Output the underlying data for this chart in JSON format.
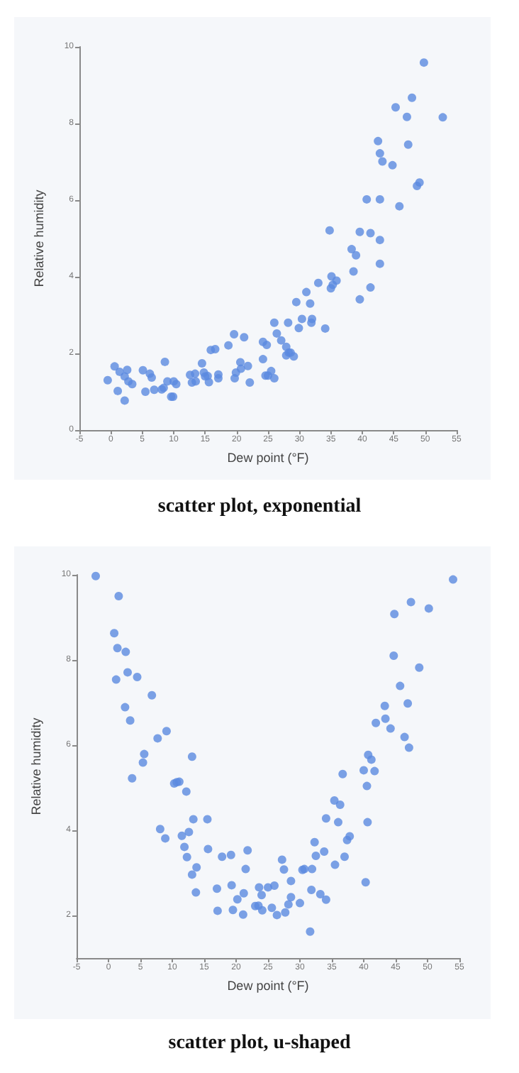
{
  "chart_data": [
    {
      "type": "scatter",
      "title": "scatter plot, exponential",
      "xlabel": "Dew point (°F)",
      "ylabel": "Relative humidity",
      "color": "#5b8ae0",
      "marker": "circle",
      "grid": false,
      "xlim": [
        -5,
        55
      ],
      "xticks": [
        -5,
        0,
        5,
        10,
        15,
        20,
        25,
        30,
        35,
        40,
        45,
        50,
        55
      ],
      "ylim": [
        0,
        10
      ],
      "yticks": [
        0,
        2,
        4,
        6,
        8,
        10
      ],
      "x": [
        -0.5,
        0.6,
        1.4,
        1.1,
        2.2,
        2.2,
        2.6,
        2.8,
        3.4,
        5.1,
        5.5,
        6.2,
        6.5,
        6.9,
        8.1,
        8.4,
        8.6,
        9.0,
        9.6,
        9.9,
        10,
        10.4,
        12.6,
        12.9,
        13.4,
        13.5,
        14.5,
        14.8,
        15,
        15.4,
        15.6,
        15.9,
        16.6,
        17.1,
        17.1,
        18.7,
        19.6,
        19.7,
        19.9,
        20.6,
        20.7,
        21.2,
        21.8,
        22.1,
        24.2,
        24.2,
        24.8,
        24.6,
        25,
        25.5,
        26.0,
        26.0,
        26.4,
        27.1,
        27.9,
        27.9,
        28.3,
        28.6,
        29.1,
        28.2,
        29.5,
        29.9,
        30.4,
        31.1,
        31.7,
        32.0,
        31.9,
        33.0,
        34.1,
        34.8,
        35.1,
        35.3,
        35.0,
        35.9,
        38.3,
        38.6,
        39.0,
        39.6,
        39.6,
        40.7,
        41.3,
        41.3,
        42.5,
        42.8,
        43.2,
        42.8,
        42.8,
        42.8,
        44.8,
        45.3,
        45.9,
        47.1,
        47.3,
        47.9,
        48.7,
        49.1,
        49.8,
        52.8
      ],
      "values": [
        1.3,
        1.66,
        1.52,
        1.02,
        0.77,
        1.4,
        1.57,
        1.27,
        1.2,
        1.56,
        1.0,
        1.47,
        1.37,
        1.05,
        1.06,
        1.1,
        1.78,
        1.27,
        0.87,
        0.87,
        1.27,
        1.2,
        1.44,
        1.24,
        1.47,
        1.27,
        1.74,
        1.5,
        1.4,
        1.41,
        1.25,
        2.09,
        2.11,
        1.45,
        1.35,
        2.21,
        2.5,
        1.35,
        1.5,
        1.77,
        1.6,
        2.42,
        1.67,
        1.24,
        1.85,
        2.3,
        2.22,
        1.42,
        1.42,
        1.54,
        1.35,
        2.8,
        2.52,
        2.34,
        2.17,
        1.95,
        2.02,
        2.02,
        1.92,
        2.8,
        3.34,
        2.66,
        2.9,
        3.6,
        3.3,
        2.9,
        2.8,
        3.84,
        2.65,
        5.21,
        4.01,
        3.79,
        3.7,
        3.9,
        4.72,
        4.14,
        4.56,
        5.17,
        3.41,
        6.02,
        3.72,
        5.14,
        7.54,
        7.22,
        7.01,
        6.02,
        4.96,
        4.34,
        6.91,
        8.42,
        5.84,
        8.17,
        7.45,
        8.67,
        6.37,
        6.46,
        9.59,
        8.16
      ]
    },
    {
      "type": "scatter",
      "title": "scatter plot, u-shaped",
      "xlabel": "Dew point (°F)",
      "ylabel": "Relative humidity",
      "color": "#5b8ae0",
      "marker": "circle",
      "grid": false,
      "xlim": [
        -5,
        55
      ],
      "xticks": [
        -5,
        0,
        5,
        10,
        15,
        20,
        25,
        30,
        35,
        40,
        45,
        50,
        55
      ],
      "ylim": [
        1,
        10
      ],
      "yticks": [
        2,
        4,
        6,
        8,
        10
      ],
      "x": [
        -2.0,
        1.6,
        0.9,
        1.4,
        2.7,
        1.2,
        3.0,
        4.5,
        6.8,
        2.6,
        3.4,
        7.7,
        9.1,
        5.6,
        5.4,
        13.1,
        3.7,
        10.3,
        10.7,
        11.1,
        12.2,
        8.1,
        8.9,
        11.5,
        12.6,
        13.3,
        15.5,
        11.9,
        12.3,
        13.8,
        13.1,
        15.6,
        13.7,
        17.8,
        19.2,
        21.8,
        21.5,
        17.0,
        19.3,
        21.2,
        20.2,
        17.1,
        19.5,
        21.1,
        23.6,
        24.0,
        23.0,
        23.5,
        24.1,
        25.0,
        26.0,
        25.6,
        26.4,
        27.2,
        27.5,
        27.7,
        28.2,
        28.6,
        28.6,
        30.0,
        30.4,
        30.7,
        31.6,
        31.8,
        31.9,
        32.3,
        32.5,
        33.2,
        33.8,
        34.1,
        34.1,
        35.4,
        35.5,
        36.0,
        36.3,
        36.7,
        37.0,
        37.4,
        37.8,
        40.0,
        40.3,
        40.5,
        40.6,
        40.7,
        41.2,
        41.7,
        41.9,
        43.3,
        43.4,
        44.2,
        44.7,
        44.8,
        45.7,
        46.4,
        46.9,
        47.1,
        47.4,
        48.7,
        50.2,
        54.0
      ],
      "values": [
        9.97,
        9.5,
        8.63,
        8.28,
        8.19,
        7.54,
        7.71,
        7.6,
        7.17,
        6.89,
        6.58,
        6.16,
        6.33,
        5.79,
        5.59,
        5.73,
        5.22,
        5.1,
        5.13,
        5.14,
        4.91,
        4.03,
        3.81,
        3.87,
        3.96,
        4.26,
        4.26,
        3.61,
        3.37,
        3.13,
        2.96,
        3.56,
        2.54,
        3.38,
        3.42,
        3.53,
        3.09,
        2.63,
        2.71,
        2.52,
        2.38,
        2.11,
        2.13,
        2.02,
        2.66,
        2.48,
        2.22,
        2.23,
        2.12,
        2.66,
        2.7,
        2.18,
        2.01,
        3.31,
        3.08,
        2.07,
        2.26,
        2.81,
        2.43,
        2.29,
        3.07,
        3.09,
        1.62,
        2.6,
        3.09,
        3.72,
        3.4,
        2.5,
        3.5,
        2.37,
        4.28,
        4.7,
        3.19,
        4.19,
        4.6,
        5.32,
        3.38,
        3.77,
        3.86,
        5.41,
        2.78,
        5.04,
        4.19,
        5.77,
        5.66,
        5.39,
        6.52,
        6.92,
        6.62,
        6.39,
        8.1,
        9.08,
        7.39,
        6.19,
        6.98,
        5.94,
        9.36,
        7.82,
        9.21,
        9.89
      ]
    }
  ]
}
